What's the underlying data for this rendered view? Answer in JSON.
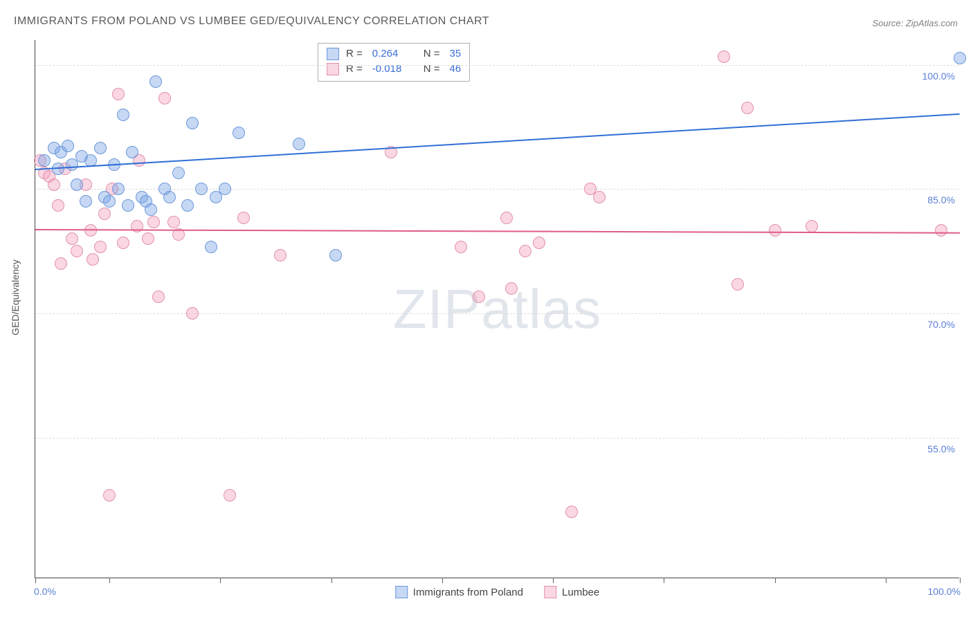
{
  "title": "IMMIGRANTS FROM POLAND VS LUMBEE GED/EQUIVALENCY CORRELATION CHART",
  "source": "Source: ZipAtlas.com",
  "ylabel": "GED/Equivalency",
  "watermark_a": "ZIP",
  "watermark_b": "atlas",
  "chart": {
    "type": "scatter",
    "background_color": "#ffffff",
    "grid_color": "#dcdcdc",
    "axis_color": "#444444",
    "label_color": "#5a7fd6",
    "title_fontsize": 16,
    "label_fontsize": 14,
    "xlim": [
      0,
      100
    ],
    "ylim": [
      38,
      103
    ],
    "y_ticks": [
      55.0,
      70.0,
      85.0,
      100.0
    ],
    "y_tick_labels": [
      "55.0%",
      "70.0%",
      "85.0%",
      "100.0%"
    ],
    "x_tick_positions": [
      0,
      8,
      20,
      32,
      44,
      56,
      68,
      80,
      92,
      100
    ],
    "x_axis_left_label": "0.0%",
    "x_axis_right_label": "100.0%",
    "marker_radius": 8,
    "marker_border_width": 1.5
  },
  "series": {
    "poland": {
      "label": "Immigrants from Poland",
      "fill": "rgba(120,162,228,0.42)",
      "stroke": "#6b97d8",
      "r_value": "0.264",
      "n_value": "35",
      "trend": {
        "x0": 0,
        "y0": 87.5,
        "x1": 100,
        "y1": 94.2,
        "color": "#2f6fd6",
        "width": 2
      },
      "points": [
        [
          1.0,
          88.5
        ],
        [
          2.0,
          90.0
        ],
        [
          2.5,
          87.5
        ],
        [
          2.8,
          89.5
        ],
        [
          3.5,
          90.2
        ],
        [
          4.0,
          88.0
        ],
        [
          4.5,
          85.5
        ],
        [
          5.0,
          89.0
        ],
        [
          5.5,
          83.5
        ],
        [
          6.0,
          88.5
        ],
        [
          7.0,
          90.0
        ],
        [
          7.5,
          84.0
        ],
        [
          8.0,
          83.5
        ],
        [
          8.5,
          88.0
        ],
        [
          9.0,
          85.0
        ],
        [
          9.5,
          94.0
        ],
        [
          10.0,
          83.0
        ],
        [
          10.5,
          89.5
        ],
        [
          11.5,
          84.0
        ],
        [
          12.0,
          83.5
        ],
        [
          12.5,
          82.5
        ],
        [
          13.0,
          98.0
        ],
        [
          14.0,
          85.0
        ],
        [
          14.5,
          84.0
        ],
        [
          15.5,
          87.0
        ],
        [
          16.5,
          83.0
        ],
        [
          17.0,
          93.0
        ],
        [
          18.0,
          85.0
        ],
        [
          19.0,
          78.0
        ],
        [
          19.5,
          84.0
        ],
        [
          20.5,
          85.0
        ],
        [
          22.0,
          91.8
        ],
        [
          28.5,
          90.5
        ],
        [
          32.5,
          77.0
        ],
        [
          100.0,
          100.8
        ]
      ]
    },
    "lumbee": {
      "label": "Lumbee",
      "fill": "rgba(242,160,188,0.42)",
      "stroke": "#e290ad",
      "r_value": "-0.018",
      "n_value": "46",
      "trend": {
        "x0": 0,
        "y0": 80.2,
        "x1": 100,
        "y1": 79.8,
        "color": "#e05a8c",
        "width": 2
      },
      "points": [
        [
          0.5,
          88.5
        ],
        [
          1.0,
          87.0
        ],
        [
          1.5,
          86.5
        ],
        [
          2.0,
          85.5
        ],
        [
          2.5,
          83.0
        ],
        [
          2.8,
          76.0
        ],
        [
          3.2,
          87.5
        ],
        [
          4.0,
          79.0
        ],
        [
          4.5,
          77.5
        ],
        [
          5.5,
          85.5
        ],
        [
          6.0,
          80.0
        ],
        [
          6.2,
          76.5
        ],
        [
          7.0,
          78.0
        ],
        [
          7.5,
          82.0
        ],
        [
          8.0,
          48.0
        ],
        [
          8.3,
          85.0
        ],
        [
          9.0,
          96.5
        ],
        [
          9.5,
          78.5
        ],
        [
          11.0,
          80.5
        ],
        [
          11.2,
          88.5
        ],
        [
          12.2,
          79.0
        ],
        [
          12.8,
          81.0
        ],
        [
          13.3,
          72.0
        ],
        [
          14.0,
          96.0
        ],
        [
          15.0,
          81.0
        ],
        [
          15.5,
          79.5
        ],
        [
          17.0,
          70.0
        ],
        [
          21.0,
          48.0
        ],
        [
          22.5,
          81.5
        ],
        [
          26.5,
          77.0
        ],
        [
          38.5,
          89.5
        ],
        [
          46.0,
          78.0
        ],
        [
          48.0,
          72.0
        ],
        [
          51.0,
          81.5
        ],
        [
          51.5,
          73.0
        ],
        [
          53.0,
          77.5
        ],
        [
          54.5,
          78.5
        ],
        [
          58.0,
          46.0
        ],
        [
          60.0,
          85.0
        ],
        [
          61.0,
          84.0
        ],
        [
          74.5,
          101.0
        ],
        [
          76.0,
          73.5
        ],
        [
          77.0,
          94.8
        ],
        [
          80.0,
          80.0
        ],
        [
          84.0,
          80.5
        ],
        [
          98.0,
          80.0
        ]
      ]
    }
  },
  "legend_top": {
    "r_label": "R  =",
    "n_label": "N  ="
  }
}
